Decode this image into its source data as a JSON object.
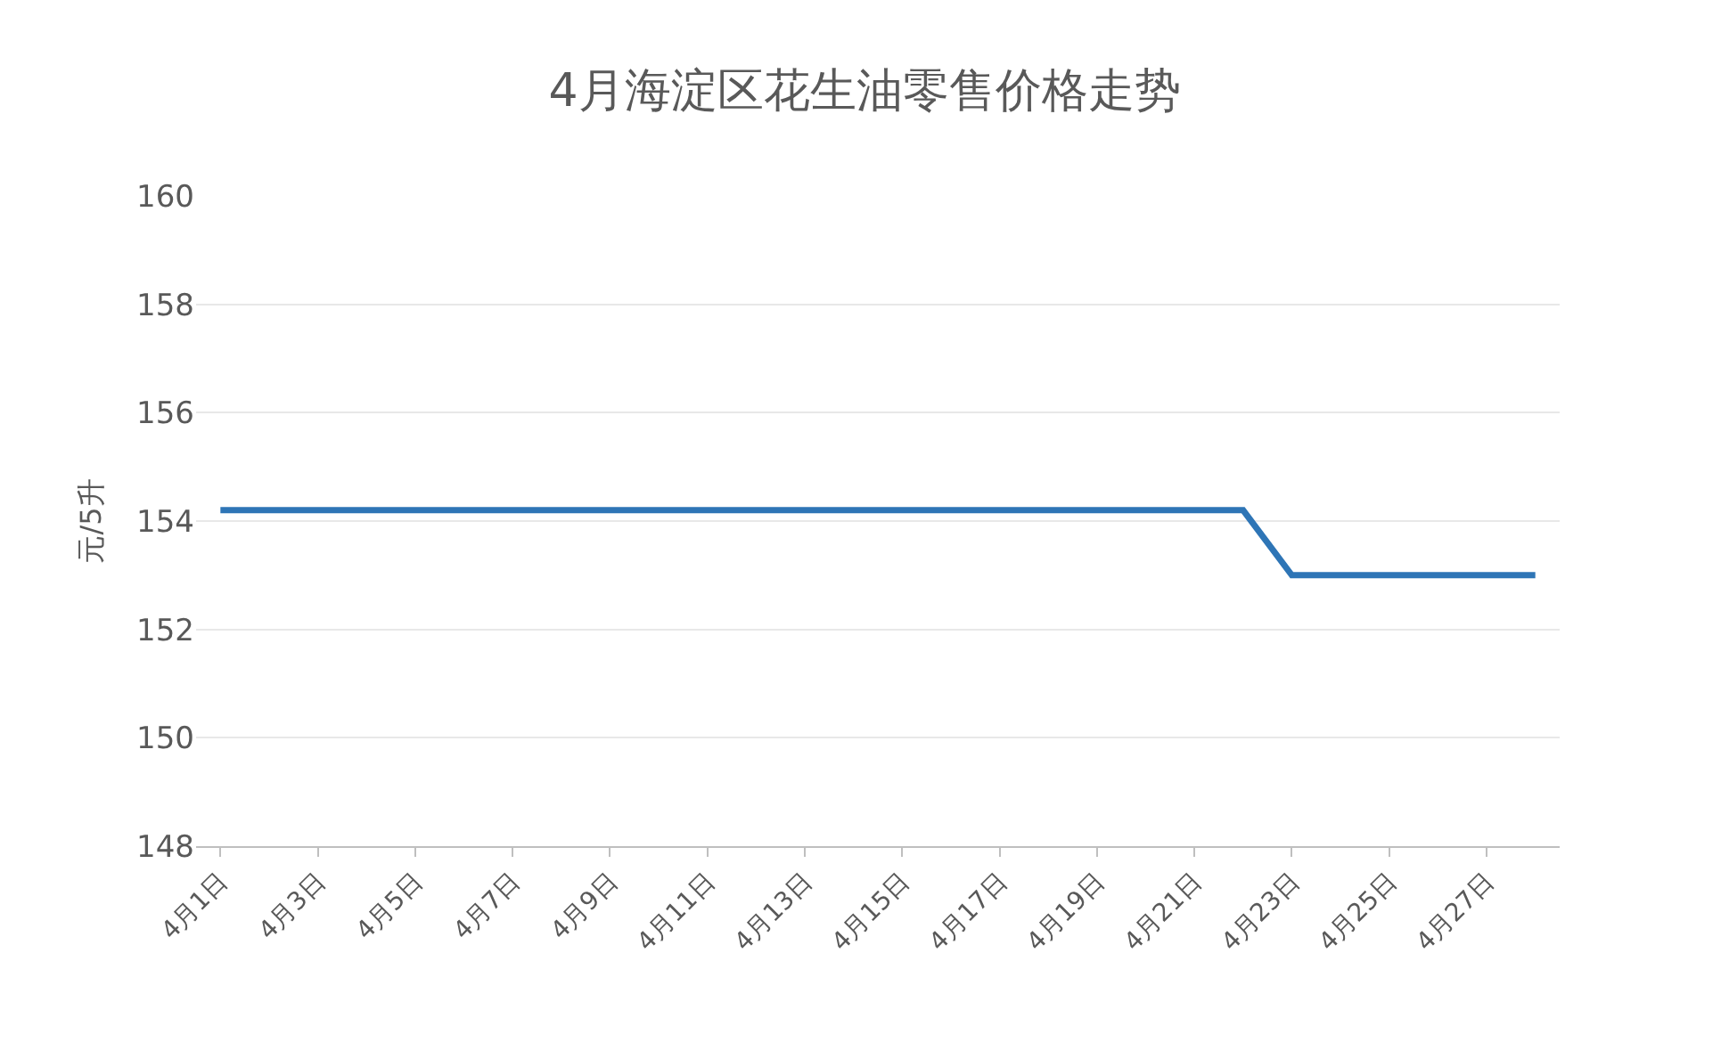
{
  "chart_data": {
    "type": "line",
    "title": "4月海淀区花生油零售价格走势",
    "ylabel": "元/5升",
    "categories": [
      "4月1日",
      null,
      "4月3日",
      null,
      "4月5日",
      null,
      "4月7日",
      null,
      "4月9日",
      null,
      "4月11日",
      null,
      "4月13日",
      null,
      "4月15日",
      null,
      "4月17日",
      null,
      "4月19日",
      null,
      "4月21日",
      null,
      "4月23日",
      null,
      "4月25日",
      null,
      "4月27日",
      null
    ],
    "series": [
      {
        "color": "#2e75b6",
        "values": [
          154.2,
          154.2,
          154.2,
          154.2,
          154.2,
          154.2,
          154.2,
          154.2,
          154.2,
          154.2,
          154.2,
          154.2,
          154.2,
          154.2,
          154.2,
          154.2,
          154.2,
          154.2,
          154.2,
          154.2,
          154.2,
          154.2,
          153.0,
          153.0,
          153.0,
          153.0,
          153.0,
          153.0
        ]
      }
    ],
    "ylim": [
      148,
      160
    ],
    "yticks": [
      148,
      150,
      152,
      154,
      156,
      158,
      160
    ],
    "grid": "y",
    "marker": "none",
    "line_style": "solid"
  }
}
